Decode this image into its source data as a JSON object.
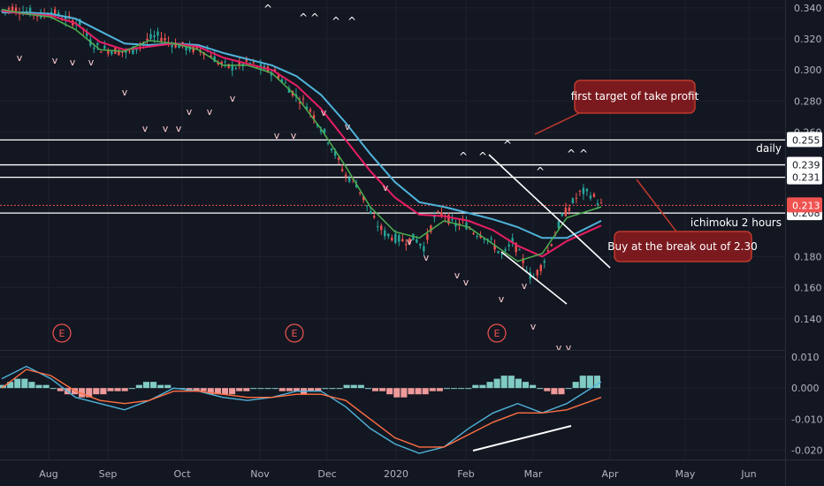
{
  "chart_data": {
    "type": "candlestick",
    "x_ticks": [
      "Aug",
      "Sep",
      "Oct",
      "Nov",
      "Dec",
      "2020",
      "Feb",
      "Mar",
      "Apr",
      "May",
      "Jun"
    ],
    "price_axis": {
      "ylim": [
        0.12,
        0.345
      ],
      "ticks": [
        "0.340",
        "0.320",
        "0.300",
        "0.280",
        "0.260",
        "0.180",
        "0.160",
        "0.140"
      ]
    },
    "macd_axis": {
      "ylim": [
        -0.023,
        0.012
      ],
      "ticks": [
        "0.010",
        "0.000",
        "-0.010",
        "-0.020"
      ]
    },
    "price_path": [
      [
        0,
        0.338
      ],
      [
        0.02,
        0.34
      ],
      [
        0.04,
        0.338
      ],
      [
        0.06,
        0.337
      ],
      [
        0.08,
        0.335
      ],
      [
        0.1,
        0.338
      ],
      [
        0.12,
        0.334
      ],
      [
        0.14,
        0.332
      ],
      [
        0.16,
        0.33
      ],
      [
        0.18,
        0.318
      ],
      [
        0.2,
        0.314
      ],
      [
        0.22,
        0.313
      ],
      [
        0.24,
        0.312
      ],
      [
        0.26,
        0.311
      ],
      [
        0.28,
        0.316
      ],
      [
        0.3,
        0.32
      ],
      [
        0.32,
        0.322
      ],
      [
        0.34,
        0.318
      ],
      [
        0.36,
        0.316
      ],
      [
        0.38,
        0.314
      ],
      [
        0.4,
        0.313
      ],
      [
        0.42,
        0.312
      ],
      [
        0.44,
        0.305
      ],
      [
        0.46,
        0.302
      ],
      [
        0.48,
        0.302
      ],
      [
        0.5,
        0.305
      ],
      [
        0.52,
        0.302
      ],
      [
        0.54,
        0.3
      ],
      [
        0.56,
        0.298
      ],
      [
        0.58,
        0.29
      ],
      [
        0.6,
        0.283
      ],
      [
        0.62,
        0.278
      ],
      [
        0.64,
        0.268
      ],
      [
        0.66,
        0.258
      ],
      [
        0.68,
        0.245
      ],
      [
        0.7,
        0.232
      ],
      [
        0.72,
        0.228
      ],
      [
        0.74,
        0.215
      ],
      [
        0.76,
        0.202
      ],
      [
        0.78,
        0.195
      ],
      [
        0.8,
        0.192
      ],
      [
        0.82,
        0.19
      ],
      [
        0.84,
        0.192
      ],
      [
        0.86,
        0.186
      ],
      [
        0.88,
        0.205
      ],
      [
        0.9,
        0.208
      ],
      [
        0.92,
        0.2
      ],
      [
        0.94,
        0.202
      ],
      [
        0.96,
        0.196
      ],
      [
        0.98,
        0.194
      ],
      [
        1.0,
        0.188
      ],
      [
        1.02,
        0.18
      ],
      [
        1.04,
        0.19
      ],
      [
        1.06,
        0.178
      ],
      [
        1.08,
        0.165
      ],
      [
        1.1,
        0.175
      ],
      [
        1.12,
        0.19
      ],
      [
        1.14,
        0.205
      ],
      [
        1.16,
        0.214
      ],
      [
        1.18,
        0.222
      ],
      [
        1.2,
        0.22
      ],
      [
        1.22,
        0.213
      ]
    ],
    "ma_pink": [
      [
        0,
        0.338
      ],
      [
        0.05,
        0.336
      ],
      [
        0.1,
        0.335
      ],
      [
        0.15,
        0.33
      ],
      [
        0.2,
        0.318
      ],
      [
        0.25,
        0.313
      ],
      [
        0.3,
        0.315
      ],
      [
        0.35,
        0.317
      ],
      [
        0.4,
        0.315
      ],
      [
        0.45,
        0.308
      ],
      [
        0.5,
        0.304
      ],
      [
        0.55,
        0.3
      ],
      [
        0.6,
        0.29
      ],
      [
        0.65,
        0.275
      ],
      [
        0.7,
        0.255
      ],
      [
        0.75,
        0.235
      ],
      [
        0.8,
        0.218
      ],
      [
        0.85,
        0.207
      ],
      [
        0.9,
        0.206
      ],
      [
        0.95,
        0.203
      ],
      [
        1.0,
        0.197
      ],
      [
        1.05,
        0.187
      ],
      [
        1.1,
        0.18
      ],
      [
        1.15,
        0.19
      ],
      [
        1.22,
        0.2
      ]
    ],
    "ma_blue": [
      [
        0,
        0.337
      ],
      [
        0.05,
        0.337
      ],
      [
        0.1,
        0.336
      ],
      [
        0.15,
        0.333
      ],
      [
        0.2,
        0.325
      ],
      [
        0.25,
        0.317
      ],
      [
        0.3,
        0.316
      ],
      [
        0.35,
        0.317
      ],
      [
        0.4,
        0.316
      ],
      [
        0.45,
        0.311
      ],
      [
        0.5,
        0.307
      ],
      [
        0.55,
        0.303
      ],
      [
        0.6,
        0.296
      ],
      [
        0.65,
        0.284
      ],
      [
        0.7,
        0.266
      ],
      [
        0.75,
        0.246
      ],
      [
        0.8,
        0.228
      ],
      [
        0.85,
        0.215
      ],
      [
        0.9,
        0.212
      ],
      [
        0.95,
        0.208
      ],
      [
        1.0,
        0.204
      ],
      [
        1.05,
        0.199
      ],
      [
        1.1,
        0.192
      ],
      [
        1.15,
        0.192
      ],
      [
        1.22,
        0.203
      ]
    ],
    "ma_green": [
      [
        0,
        0.339
      ],
      [
        0.05,
        0.336
      ],
      [
        0.1,
        0.334
      ],
      [
        0.15,
        0.326
      ],
      [
        0.2,
        0.313
      ],
      [
        0.25,
        0.312
      ],
      [
        0.3,
        0.319
      ],
      [
        0.35,
        0.317
      ],
      [
        0.4,
        0.313
      ],
      [
        0.45,
        0.303
      ],
      [
        0.5,
        0.303
      ],
      [
        0.55,
        0.298
      ],
      [
        0.6,
        0.283
      ],
      [
        0.65,
        0.262
      ],
      [
        0.7,
        0.238
      ],
      [
        0.75,
        0.212
      ],
      [
        0.8,
        0.196
      ],
      [
        0.85,
        0.192
      ],
      [
        0.9,
        0.203
      ],
      [
        0.95,
        0.199
      ],
      [
        1.0,
        0.188
      ],
      [
        1.05,
        0.177
      ],
      [
        1.1,
        0.182
      ],
      [
        1.15,
        0.205
      ],
      [
        1.22,
        0.212
      ]
    ],
    "macd_hist": [
      0.001,
      0.002,
      0.003,
      0.003,
      0.002,
      0.001,
      0.001,
      0.0,
      -0.001,
      -0.002,
      -0.002,
      -0.003,
      -0.003,
      -0.002,
      -0.002,
      -0.001,
      -0.001,
      -0.001,
      0.0,
      0.001,
      0.002,
      0.002,
      0.001,
      0.001,
      0.0,
      0.0,
      -0.001,
      -0.001,
      -0.001,
      -0.002,
      -0.002,
      -0.002,
      -0.002,
      -0.001,
      -0.001,
      0.0,
      0.0,
      0.0,
      0.0,
      -0.001,
      -0.001,
      -0.001,
      -0.002,
      -0.001,
      -0.001,
      0.0,
      0.0,
      0.0,
      0.001,
      0.001,
      0.001,
      0.0,
      -0.001,
      -0.001,
      -0.002,
      -0.003,
      -0.003,
      -0.002,
      -0.002,
      -0.002,
      -0.001,
      -0.001,
      0.0,
      0.0,
      0.0,
      0.0,
      0.001,
      0.001,
      0.002,
      0.003,
      0.004,
      0.004,
      0.003,
      0.002,
      0.001,
      0.0,
      -0.001,
      -0.002,
      -0.002,
      0.0,
      0.002,
      0.004,
      0.004,
      0.004
    ],
    "macd_line": [
      [
        0,
        0.003
      ],
      [
        0.05,
        0.007
      ],
      [
        0.1,
        0.003
      ],
      [
        0.15,
        -0.003
      ],
      [
        0.2,
        -0.005
      ],
      [
        0.25,
        -0.007
      ],
      [
        0.3,
        -0.004
      ],
      [
        0.35,
        0.0
      ],
      [
        0.4,
        -0.001
      ],
      [
        0.45,
        -0.003
      ],
      [
        0.5,
        -0.004
      ],
      [
        0.55,
        -0.003
      ],
      [
        0.6,
        -0.001
      ],
      [
        0.65,
        -0.001
      ],
      [
        0.7,
        -0.006
      ],
      [
        0.75,
        -0.013
      ],
      [
        0.8,
        -0.018
      ],
      [
        0.85,
        -0.021
      ],
      [
        0.9,
        -0.019
      ],
      [
        0.95,
        -0.013
      ],
      [
        1.0,
        -0.008
      ],
      [
        1.05,
        -0.005
      ],
      [
        1.1,
        -0.008
      ],
      [
        1.15,
        -0.005
      ],
      [
        1.22,
        0.002
      ]
    ],
    "signal_line": [
      [
        0,
        0.0
      ],
      [
        0.05,
        0.006
      ],
      [
        0.1,
        0.004
      ],
      [
        0.15,
        -0.001
      ],
      [
        0.2,
        -0.004
      ],
      [
        0.25,
        -0.005
      ],
      [
        0.3,
        -0.004
      ],
      [
        0.35,
        -0.001
      ],
      [
        0.4,
        -0.001
      ],
      [
        0.45,
        -0.002
      ],
      [
        0.5,
        -0.003
      ],
      [
        0.55,
        -0.003
      ],
      [
        0.6,
        -0.002
      ],
      [
        0.65,
        -0.002
      ],
      [
        0.7,
        -0.004
      ],
      [
        0.75,
        -0.01
      ],
      [
        0.8,
        -0.016
      ],
      [
        0.85,
        -0.019
      ],
      [
        0.9,
        -0.019
      ],
      [
        0.95,
        -0.015
      ],
      [
        1.0,
        -0.011
      ],
      [
        1.05,
        -0.008
      ],
      [
        1.1,
        -0.008
      ],
      [
        1.15,
        -0.007
      ],
      [
        1.22,
        -0.003
      ]
    ],
    "horizontal_levels": [
      {
        "value": 0.255,
        "label": "0.255"
      },
      {
        "value": 0.239,
        "label": "0.239"
      },
      {
        "value": 0.231,
        "label": "0.231"
      },
      {
        "value": 0.208,
        "label": "0.208"
      }
    ],
    "current_price": {
      "value": 0.213,
      "label": "0.213"
    },
    "annotations": {
      "first_target": "first target of take profit",
      "buy_break": "Buy at the break out of 2.30",
      "daily": "daily",
      "ichimoku": "ichimoku 2 hours"
    },
    "earnings_markers": [
      "E",
      "E",
      "E"
    ],
    "colors": {
      "background": "#131722",
      "up": "#26a69a",
      "down": "#ef5350",
      "ma_pink": "#e91e63",
      "ma_blue": "#4fb3d9",
      "ma_green": "#4caf50",
      "callout_fill": "#7a1a1f",
      "callout_border": "#c0392b",
      "current_price": "#ef5350"
    }
  }
}
